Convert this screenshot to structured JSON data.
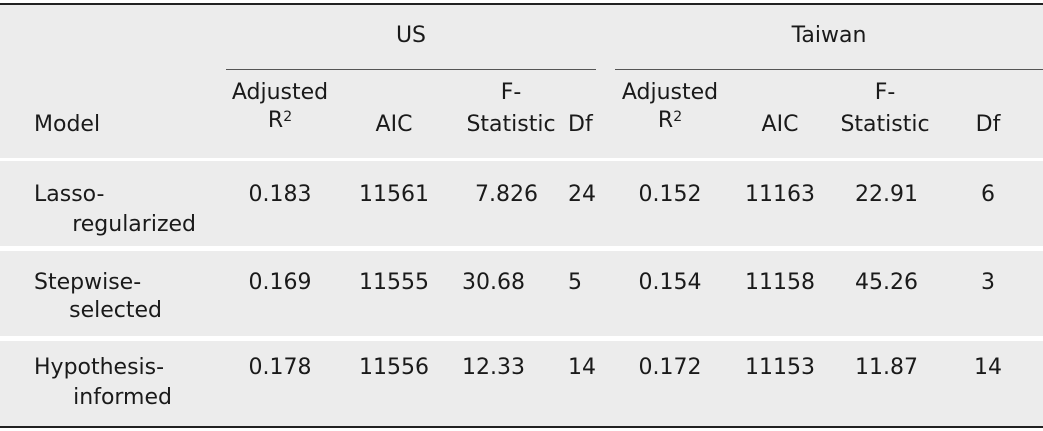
{
  "groups": {
    "us": "US",
    "taiwan": "Taiwan"
  },
  "columns": {
    "model": "Model",
    "adjusted_line1": "Adjusted",
    "adjusted_line2": "R",
    "adjusted_sup": "2",
    "aic": "AIC",
    "f_line1": "F-",
    "f_line2": "Statistic",
    "df": "Df"
  },
  "rows": [
    {
      "model_line1": "Lasso-",
      "model_line2": "regularized",
      "us": {
        "adj_r2": "0.183",
        "aic": "11561",
        "f": "7.826",
        "df": "24"
      },
      "taiwan": {
        "adj_r2": "0.152",
        "aic": "11163",
        "f": "22.91",
        "df": "6"
      }
    },
    {
      "model_line1": "Stepwise-",
      "model_line2": "selected",
      "us": {
        "adj_r2": "0.169",
        "aic": "11555",
        "f": "30.68",
        "df": "5"
      },
      "taiwan": {
        "adj_r2": "0.154",
        "aic": "11158",
        "f": "45.26",
        "df": "3"
      }
    },
    {
      "model_line1": "Hypothesis-",
      "model_line2": "informed",
      "us": {
        "adj_r2": "0.178",
        "aic": "11556",
        "f": "12.33",
        "df": "14"
      },
      "taiwan": {
        "adj_r2": "0.172",
        "aic": "11153",
        "f": "11.87",
        "df": "14"
      }
    }
  ]
}
